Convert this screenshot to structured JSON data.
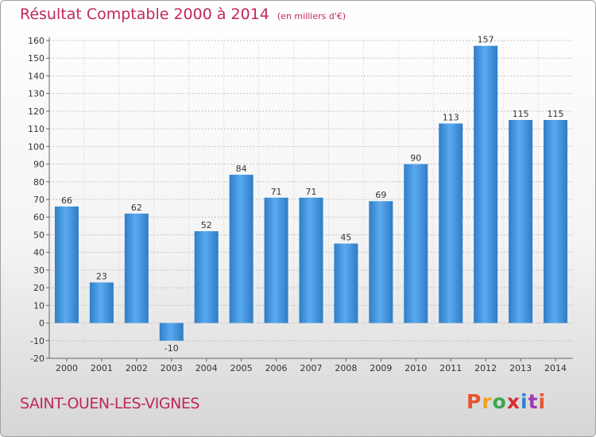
{
  "chart_data": {
    "type": "bar",
    "title": "Résultat Comptable 2000 à 2014",
    "subtitle": "(en milliers d'€)",
    "categories": [
      "2000",
      "2001",
      "2002",
      "2003",
      "2004",
      "2005",
      "2006",
      "2007",
      "2008",
      "2009",
      "2010",
      "2011",
      "2012",
      "2013",
      "2014"
    ],
    "values": [
      66,
      23,
      62,
      -10,
      52,
      84,
      71,
      71,
      45,
      69,
      90,
      113,
      157,
      115,
      115
    ],
    "ylim": [
      -20,
      160
    ],
    "ytick_step": 10,
    "grid": true,
    "legend": "none",
    "bar_color": "#3a8fd6"
  },
  "footer": {
    "commune": "SAINT-OUEN-LES-VIGNES",
    "logo_text": "Proxiti",
    "logo_colors": [
      "#e8532e",
      "#f0a21f",
      "#38a84a",
      "#d52f2f",
      "#2f7fd0",
      "#9c3bb5",
      "#e8532e"
    ]
  }
}
